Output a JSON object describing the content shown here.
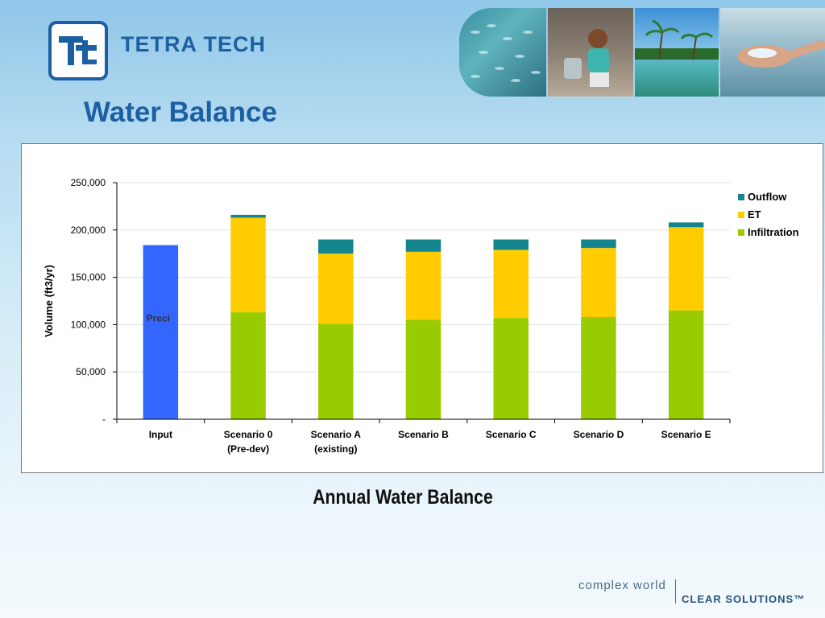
{
  "brand": {
    "name": "TETRA TECH",
    "tagline_left": "complex world",
    "tagline_right": "CLEAR SOLUTIONS™",
    "brand_color": "#1d5fa3"
  },
  "slide": {
    "title": "Water Balance",
    "caption": "Annual Water Balance"
  },
  "chart_data": {
    "type": "bar",
    "stacked": true,
    "categories": [
      [
        "Input"
      ],
      [
        "Scenario 0",
        "(Pre-dev)"
      ],
      [
        "Scenario A",
        "(existing)"
      ],
      [
        "Scenario B"
      ],
      [
        "Scenario C"
      ],
      [
        "Scenario D"
      ],
      [
        "Scenario E"
      ]
    ],
    "series": [
      {
        "name": "Infiltration",
        "color": "#99cc00",
        "values": [
          0,
          113000,
          101000,
          105000,
          107000,
          108000,
          115000
        ]
      },
      {
        "name": "ET",
        "color": "#ffcc00",
        "values": [
          0,
          100000,
          74000,
          72000,
          72000,
          73000,
          88000
        ]
      },
      {
        "name": "Outflow",
        "color": "#15858d",
        "values": [
          0,
          3000,
          15000,
          13000,
          11000,
          9000,
          5000
        ]
      }
    ],
    "input_bar": {
      "category_index": 0,
      "value": 184000,
      "color": "#3366ff",
      "label": "Preci"
    },
    "ylabel": "Volume (ft3/yr)",
    "ylim": [
      0,
      250000
    ],
    "yticks": [
      0,
      50000,
      100000,
      150000,
      200000,
      250000
    ],
    "ytick_labels": [
      "-",
      "50,000",
      "100,000",
      "150,000",
      "200,000",
      "250,000"
    ],
    "legend": [
      "Outflow",
      "ET",
      "Infiltration"
    ],
    "legend_position": "right",
    "grid": true
  }
}
